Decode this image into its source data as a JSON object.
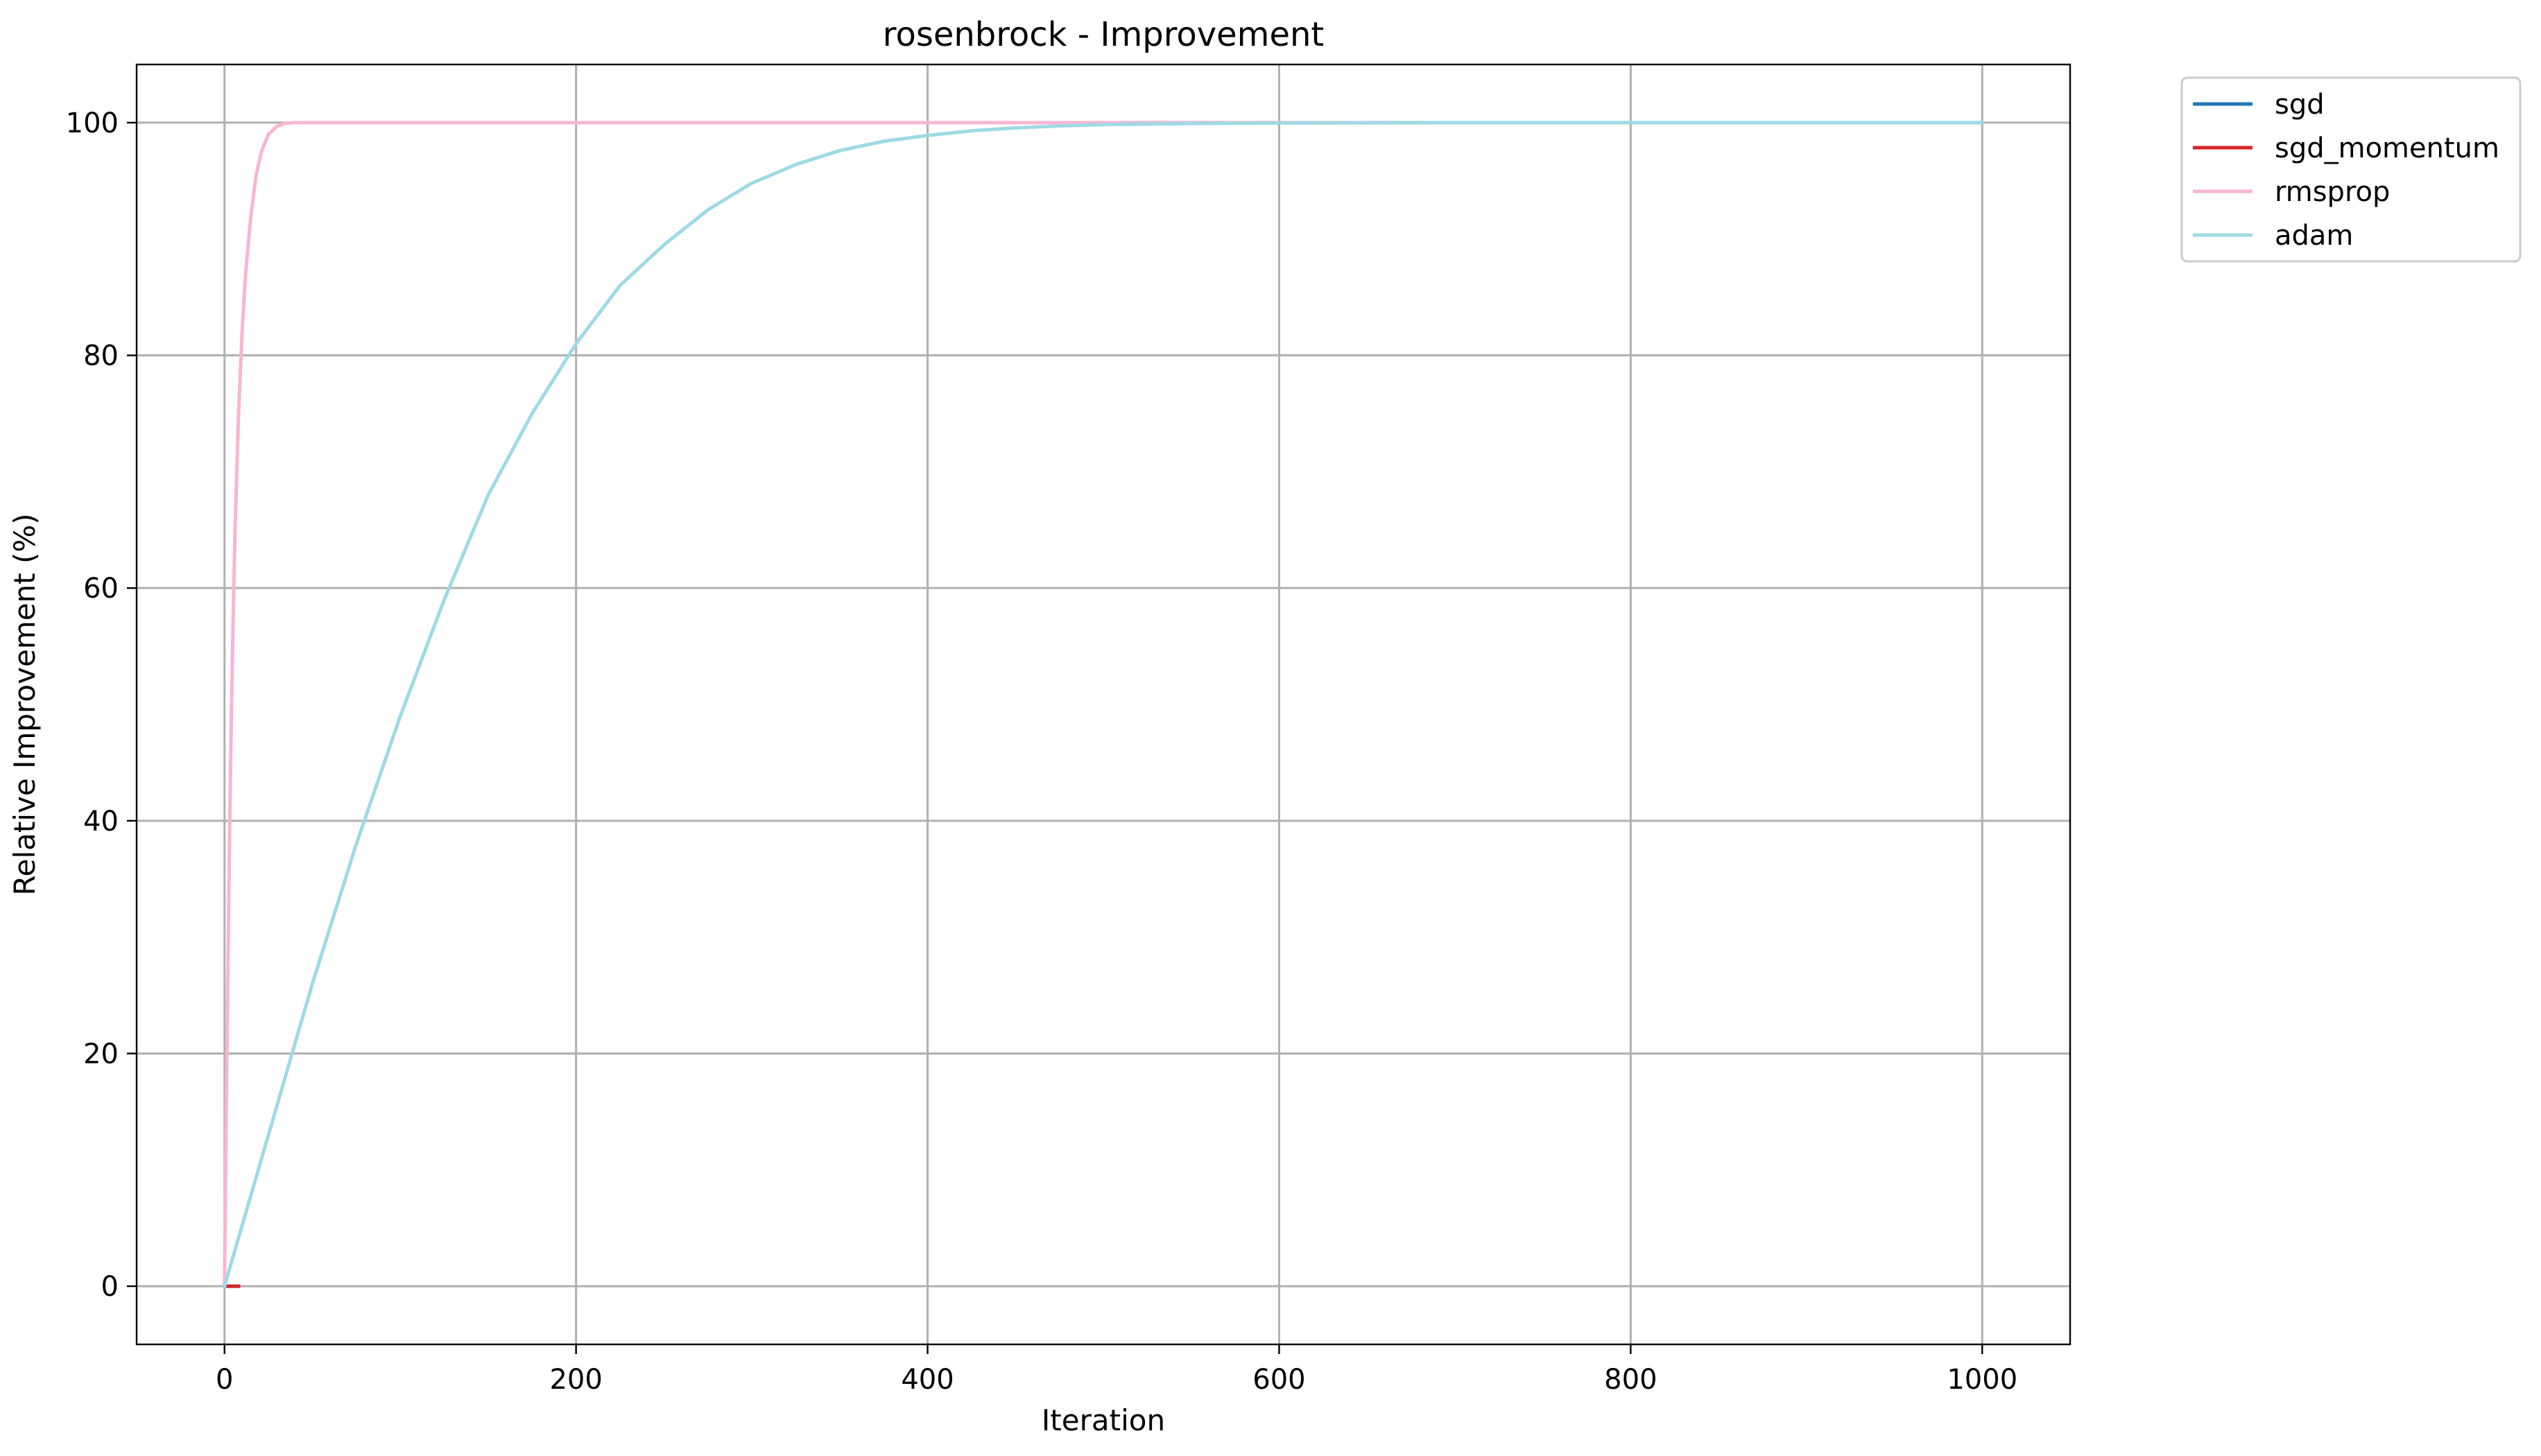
{
  "chart_data": {
    "type": "line",
    "title": "rosenbrock - Improvement",
    "xlabel": "Iteration",
    "ylabel": "Relative Improvement (%)",
    "xlim": [
      -50,
      1050
    ],
    "ylim": [
      -5,
      105
    ],
    "xticks": [
      0,
      200,
      400,
      600,
      800,
      1000
    ],
    "yticks": [
      0,
      20,
      40,
      60,
      80,
      100
    ],
    "grid": true,
    "legend_position": "outside-top-right",
    "series": [
      {
        "name": "sgd",
        "color": "#1f77b4",
        "x": [
          0,
          1,
          2,
          3,
          4,
          5,
          6,
          7,
          8
        ],
        "y": [
          0,
          0,
          0,
          0,
          0,
          0,
          0,
          0,
          0
        ]
      },
      {
        "name": "sgd_momentum",
        "color": "#d62728",
        "x": [
          0,
          1,
          2,
          3,
          4,
          5,
          6,
          7,
          8
        ],
        "y": [
          0,
          0,
          0,
          0,
          0,
          0,
          0,
          0,
          0
        ]
      },
      {
        "name": "rmsprop",
        "color": "#f7b6d2",
        "x": [
          0,
          1,
          2,
          3,
          4,
          5,
          6,
          8,
          10,
          12,
          15,
          18,
          21,
          25,
          30,
          35,
          40,
          50,
          100,
          200,
          400,
          600,
          800,
          1000
        ],
        "y": [
          0,
          15,
          28,
          40,
          50,
          58,
          65,
          75,
          82,
          87,
          92,
          95.5,
          97.5,
          99,
          99.7,
          99.95,
          100,
          100,
          100,
          100,
          100,
          100,
          100,
          100
        ]
      },
      {
        "name": "adam",
        "color": "#9edae5",
        "x": [
          0,
          25,
          50,
          75,
          100,
          125,
          150,
          175,
          200,
          225,
          250,
          275,
          300,
          325,
          350,
          375,
          400,
          425,
          450,
          475,
          500,
          550,
          600,
          700,
          800,
          900,
          1000
        ],
        "y": [
          0,
          13,
          26,
          38,
          49,
          59,
          68,
          75,
          81,
          86,
          89.5,
          92.5,
          94.8,
          96.4,
          97.6,
          98.4,
          98.9,
          99.3,
          99.55,
          99.72,
          99.83,
          99.93,
          99.97,
          100,
          100,
          100,
          100
        ]
      }
    ]
  }
}
